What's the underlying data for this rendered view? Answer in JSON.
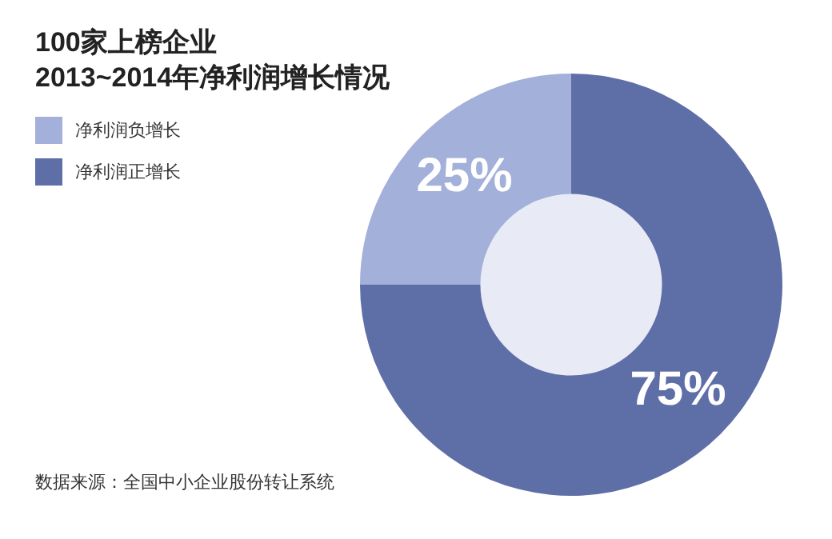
{
  "chart_data": {
    "type": "donut",
    "title": "100家上榜企业\n2013~2014年净利润增长情况",
    "categories": [
      "净利润负增长",
      "净利润正增长"
    ],
    "values": [
      25,
      75
    ],
    "colors": [
      "#a3b0da",
      "#5e6ea7"
    ],
    "value_labels": [
      "25%",
      "75%"
    ],
    "legend": "top left",
    "annotations": [
      "数据来源：全国中小企业股份转让系统"
    ]
  }
}
